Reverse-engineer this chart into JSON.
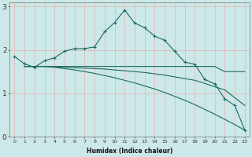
{
  "xlabel": "Humidex (Indice chaleur)",
  "bg_color": "#cce8e8",
  "grid_color": "#e8b0b0",
  "line_color": "#1a6b60",
  "xlim": [
    -0.5,
    23.5
  ],
  "ylim": [
    0,
    3.1
  ],
  "yticks": [
    0,
    1,
    2,
    3
  ],
  "xticks": [
    0,
    1,
    2,
    3,
    4,
    5,
    6,
    7,
    8,
    9,
    10,
    11,
    12,
    13,
    14,
    15,
    16,
    17,
    18,
    19,
    20,
    21,
    22,
    23
  ],
  "line1_x": [
    0,
    1,
    2,
    3,
    4,
    5,
    6,
    7,
    8,
    9,
    10,
    11,
    12,
    13,
    14,
    15,
    16,
    17,
    18,
    19,
    20,
    21,
    22,
    23
  ],
  "line1_y": [
    1.85,
    1.68,
    1.6,
    1.75,
    1.82,
    1.97,
    2.03,
    2.03,
    2.07,
    2.42,
    2.63,
    2.92,
    2.62,
    2.51,
    2.32,
    2.22,
    1.97,
    1.72,
    1.67,
    1.32,
    1.22,
    0.87,
    0.72,
    0.15
  ],
  "line2_x": [
    1,
    2,
    3,
    4,
    5,
    6,
    7,
    8,
    9,
    10,
    11,
    12,
    13,
    14,
    15,
    16,
    17,
    18,
    19,
    20,
    21,
    22,
    23
  ],
  "line2_y": [
    1.62,
    1.62,
    1.62,
    1.62,
    1.62,
    1.62,
    1.62,
    1.62,
    1.62,
    1.62,
    1.62,
    1.62,
    1.62,
    1.62,
    1.62,
    1.62,
    1.62,
    1.62,
    1.62,
    1.62,
    1.5,
    1.5,
    1.5
  ],
  "line3_x": [
    1,
    2,
    3,
    4,
    5,
    6,
    7,
    8,
    9,
    10,
    11,
    12,
    13,
    14,
    15,
    16,
    17,
    18,
    19,
    20,
    21,
    22,
    23
  ],
  "line3_y": [
    1.62,
    1.62,
    1.62,
    1.61,
    1.6,
    1.59,
    1.58,
    1.57,
    1.56,
    1.54,
    1.52,
    1.5,
    1.48,
    1.45,
    1.42,
    1.38,
    1.34,
    1.3,
    1.23,
    1.15,
    1.08,
    0.9,
    0.72
  ],
  "line4_x": [
    1,
    2,
    3,
    4,
    5,
    6,
    7,
    8,
    9,
    10,
    11,
    12,
    13,
    14,
    15,
    16,
    17,
    18,
    19,
    20,
    21,
    22,
    23
  ],
  "line4_y": [
    1.62,
    1.62,
    1.62,
    1.6,
    1.57,
    1.54,
    1.5,
    1.46,
    1.41,
    1.36,
    1.3,
    1.24,
    1.17,
    1.1,
    1.02,
    0.93,
    0.84,
    0.74,
    0.63,
    0.52,
    0.4,
    0.28,
    0.15
  ]
}
